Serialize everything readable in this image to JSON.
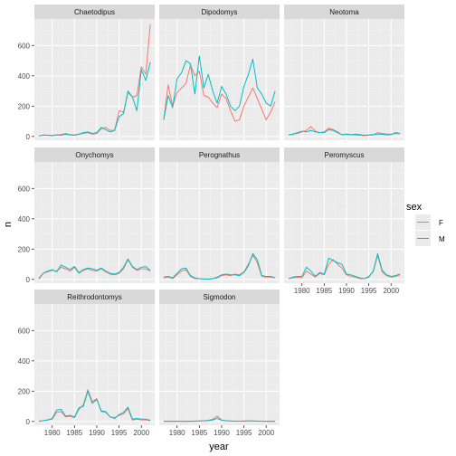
{
  "chart_data": {
    "type": "line",
    "xlabel": "year",
    "ylabel": "n",
    "xlim": [
      1976,
      2003
    ],
    "ylim": [
      -25,
      775
    ],
    "xticks": [
      1980,
      1985,
      1990,
      1995,
      2000
    ],
    "yticks": [
      0,
      200,
      400,
      600
    ],
    "grid": true,
    "legend": {
      "title": "sex",
      "position": "right",
      "entries": [
        {
          "label": "F",
          "color": "#F8766D"
        },
        {
          "label": "M",
          "color": "#00BFC4"
        }
      ]
    },
    "x": [
      1977,
      1978,
      1979,
      1980,
      1981,
      1982,
      1983,
      1984,
      1985,
      1986,
      1987,
      1988,
      1989,
      1990,
      1991,
      1992,
      1993,
      1994,
      1995,
      1996,
      1997,
      1998,
      1999,
      2000,
      2001,
      2002
    ],
    "panels": [
      {
        "title": "Chaetodipus",
        "series": [
          {
            "name": "F",
            "values": [
              3,
              10,
              8,
              7,
              10,
              12,
              20,
              12,
              10,
              15,
              20,
              25,
              15,
              20,
              50,
              60,
              40,
              40,
              170,
              160,
              290,
              260,
              270,
              460,
              410,
              740
            ]
          },
          {
            "name": "M",
            "values": [
              3,
              8,
              8,
              5,
              10,
              8,
              15,
              10,
              8,
              15,
              25,
              30,
              20,
              25,
              60,
              45,
              30,
              40,
              130,
              150,
              300,
              260,
              170,
              440,
              370,
              490
            ]
          }
        ]
      },
      {
        "title": "Dipodomys",
        "series": [
          {
            "name": "F",
            "values": [
              110,
              340,
              200,
              290,
              320,
              350,
              470,
              400,
              430,
              270,
              260,
              220,
              190,
              280,
              250,
              170,
              100,
              110,
              200,
              260,
              320,
              250,
              180,
              110,
              160,
              230
            ]
          },
          {
            "name": "M",
            "values": [
              110,
              270,
              190,
              380,
              420,
              500,
              480,
              280,
              530,
              320,
              410,
              300,
              220,
              330,
              280,
              200,
              170,
              200,
              330,
              410,
              510,
              320,
              280,
              220,
              200,
              300
            ]
          }
        ]
      },
      {
        "title": "Neotoma",
        "series": [
          {
            "name": "F",
            "values": [
              10,
              15,
              20,
              30,
              40,
              65,
              35,
              25,
              30,
              55,
              45,
              30,
              10,
              15,
              12,
              10,
              8,
              5,
              8,
              10,
              25,
              20,
              15,
              15,
              20,
              18
            ]
          },
          {
            "name": "M",
            "values": [
              10,
              15,
              25,
              35,
              30,
              40,
              30,
              25,
              25,
              45,
              40,
              25,
              12,
              15,
              10,
              15,
              12,
              8,
              10,
              12,
              15,
              15,
              10,
              12,
              25,
              20
            ]
          }
        ]
      },
      {
        "title": "Onychomys",
        "series": [
          {
            "name": "F",
            "values": [
              2,
              40,
              50,
              60,
              55,
              80,
              70,
              55,
              80,
              40,
              60,
              70,
              60,
              55,
              70,
              50,
              35,
              30,
              40,
              70,
              130,
              80,
              60,
              70,
              70,
              55
            ]
          },
          {
            "name": "M",
            "values": [
              8,
              40,
              55,
              65,
              50,
              95,
              80,
              65,
              85,
              45,
              65,
              75,
              70,
              60,
              75,
              55,
              40,
              35,
              45,
              80,
              135,
              85,
              65,
              80,
              85,
              60
            ]
          }
        ]
      },
      {
        "title": "Perognathus",
        "series": [
          {
            "name": "F",
            "values": [
              10,
              15,
              5,
              30,
              55,
              65,
              20,
              5,
              5,
              2,
              2,
              5,
              10,
              25,
              30,
              25,
              35,
              30,
              50,
              100,
              160,
              110,
              20,
              15,
              15,
              10
            ]
          },
          {
            "name": "M",
            "values": [
              15,
              20,
              10,
              40,
              70,
              75,
              25,
              10,
              5,
              3,
              2,
              5,
              15,
              30,
              35,
              30,
              30,
              25,
              45,
              90,
              170,
              130,
              25,
              20,
              20,
              12
            ]
          }
        ]
      },
      {
        "title": "Peromyscus",
        "series": [
          {
            "name": "F",
            "values": [
              5,
              10,
              15,
              10,
              55,
              35,
              15,
              40,
              30,
              100,
              130,
              100,
              75,
              30,
              20,
              15,
              5,
              5,
              20,
              50,
              160,
              50,
              25,
              15,
              20,
              30
            ]
          },
          {
            "name": "M",
            "values": [
              5,
              15,
              20,
              20,
              80,
              55,
              20,
              45,
              35,
              140,
              125,
              110,
              100,
              35,
              30,
              20,
              10,
              5,
              15,
              55,
              170,
              60,
              30,
              20,
              25,
              35
            ]
          }
        ]
      },
      {
        "title": "Reithrodontomys",
        "series": [
          {
            "name": "F",
            "values": [
              2,
              5,
              10,
              15,
              60,
              65,
              30,
              35,
              25,
              80,
              110,
              210,
              130,
              150,
              65,
              60,
              30,
              25,
              40,
              50,
              85,
              10,
              15,
              10,
              10,
              5
            ]
          },
          {
            "name": "M",
            "values": [
              2,
              5,
              10,
              20,
              75,
              80,
              35,
              40,
              30,
              90,
              100,
              200,
              120,
              145,
              70,
              65,
              30,
              20,
              45,
              60,
              95,
              15,
              20,
              15,
              15,
              8
            ]
          }
        ]
      },
      {
        "title": "Sigmodon",
        "series": [
          {
            "name": "F",
            "values": [
              1,
              1,
              1,
              1,
              1,
              1,
              1,
              2,
              3,
              5,
              8,
              15,
              35,
              10,
              5,
              3,
              2,
              2,
              3,
              3,
              3,
              2,
              2,
              1,
              2,
              1
            ]
          },
          {
            "name": "M",
            "values": [
              1,
              1,
              1,
              1,
              1,
              1,
              1,
              2,
              3,
              4,
              5,
              10,
              20,
              8,
              4,
              3,
              2,
              2,
              2,
              3,
              3,
              2,
              2,
              1,
              1,
              1
            ]
          }
        ]
      }
    ]
  }
}
